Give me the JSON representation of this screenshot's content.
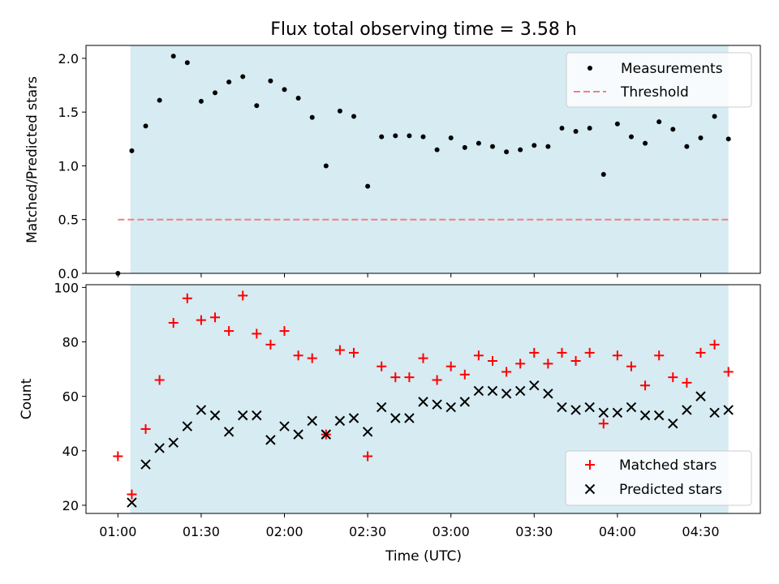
{
  "chart_data": {
    "type": "scatter",
    "title": "Flux total observing time = 3.58 h",
    "xlabel": "Time (UTC)",
    "x_ticks": [
      "01:00",
      "01:30",
      "02:00",
      "02:30",
      "03:00",
      "03:30",
      "04:00",
      "04:30"
    ],
    "x_tick_minutes": [
      0,
      30,
      60,
      90,
      120,
      150,
      180,
      210
    ],
    "x_range_minutes": [
      -11.5,
      231.5
    ],
    "x_unit": "minutes after 01:00 UTC",
    "shaded_range_minutes": [
      4.5,
      220
    ],
    "shade_color": "#add8e6",
    "top": {
      "ylabel": "Matched/Predicted stars",
      "ylim": [
        0,
        2.12
      ],
      "yticks": [
        "0.0",
        "0.5",
        "1.0",
        "1.5",
        "2.0"
      ],
      "threshold": 0.5,
      "threshold_color": "#f08080",
      "threshold_x": [
        0,
        220
      ],
      "legend": [
        "Measurements",
        "Threshold"
      ],
      "legend_position": "top-right",
      "measurements": {
        "color": "#000000",
        "x": [
          0,
          5,
          10,
          15,
          20,
          25,
          30,
          35,
          40,
          45,
          50,
          55,
          60,
          65,
          70,
          75,
          80,
          85,
          90,
          95,
          100,
          105,
          110,
          115,
          120,
          125,
          130,
          135,
          140,
          145,
          150,
          155,
          160,
          165,
          170,
          175,
          180,
          185,
          190,
          195,
          200,
          205,
          210,
          215,
          220
        ],
        "y": [
          0.0,
          1.14,
          1.37,
          1.61,
          2.02,
          1.96,
          1.6,
          1.68,
          1.78,
          1.83,
          1.56,
          1.79,
          1.71,
          1.63,
          1.45,
          1.0,
          1.51,
          1.46,
          0.81,
          1.27,
          1.28,
          1.28,
          1.27,
          1.15,
          1.26,
          1.17,
          1.21,
          1.18,
          1.13,
          1.15,
          1.19,
          1.18,
          1.35,
          1.32,
          1.35,
          0.92,
          1.39,
          1.27,
          1.21,
          1.41,
          1.34,
          1.18,
          1.26,
          1.46,
          1.25
        ]
      }
    },
    "bottom": {
      "ylabel": "Count",
      "ylim": [
        17,
        101
      ],
      "yticks": [
        "20",
        "40",
        "60",
        "80",
        "100"
      ],
      "legend": [
        "Matched stars",
        "Predicted stars"
      ],
      "legend_position": "bottom-right",
      "series": [
        {
          "name": "Matched stars",
          "marker": "+",
          "color": "#ff0000",
          "x": [
            0,
            5,
            10,
            15,
            20,
            25,
            30,
            35,
            40,
            45,
            50,
            55,
            60,
            65,
            70,
            75,
            80,
            85,
            90,
            95,
            100,
            105,
            110,
            115,
            120,
            125,
            130,
            135,
            140,
            145,
            150,
            155,
            160,
            165,
            170,
            175,
            180,
            185,
            190,
            195,
            200,
            205,
            210,
            215,
            220
          ],
          "y": [
            38,
            24,
            48,
            66,
            87,
            96,
            88,
            89,
            84,
            97,
            83,
            79,
            84,
            75,
            74,
            46,
            77,
            76,
            38,
            71,
            67,
            67,
            74,
            66,
            71,
            68,
            75,
            73,
            69,
            72,
            76,
            72,
            76,
            73,
            76,
            50,
            75,
            71,
            64,
            75,
            67,
            65,
            76,
            79,
            69
          ]
        },
        {
          "name": "Predicted stars",
          "marker": "x",
          "color": "#000000",
          "x": [
            5,
            10,
            15,
            20,
            25,
            30,
            35,
            40,
            45,
            50,
            55,
            60,
            65,
            70,
            75,
            80,
            85,
            90,
            95,
            100,
            105,
            110,
            115,
            120,
            125,
            130,
            135,
            140,
            145,
            150,
            155,
            160,
            165,
            170,
            175,
            180,
            185,
            190,
            195,
            200,
            205,
            210,
            215,
            220
          ],
          "y": [
            21,
            35,
            41,
            43,
            49,
            55,
            53,
            47,
            53,
            53,
            44,
            49,
            46,
            51,
            46,
            51,
            52,
            47,
            56,
            52,
            52,
            58,
            57,
            56,
            58,
            62,
            62,
            61,
            62,
            64,
            61,
            56,
            55,
            56,
            54,
            54,
            56,
            53,
            53,
            50,
            55,
            60,
            54,
            55
          ]
        }
      ]
    }
  }
}
